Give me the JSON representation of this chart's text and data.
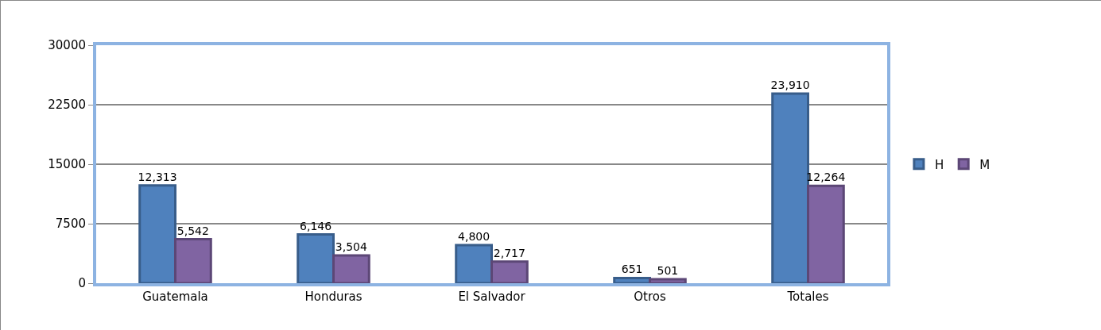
{
  "chart_data": {
    "type": "bar",
    "categories": [
      "Guatemala",
      "Honduras",
      "El Salvador",
      "Otros",
      "Totales"
    ],
    "series": [
      {
        "name": "H",
        "color": "#4f81bd",
        "values": [
          12313,
          6146,
          4800,
          651,
          23910
        ],
        "value_labels": [
          "12,313",
          "6,146",
          "4,800",
          "651",
          "23,910"
        ]
      },
      {
        "name": "M",
        "color": "#8064a2",
        "values": [
          5542,
          3504,
          2717,
          501,
          12264
        ],
        "value_labels": [
          "5,542",
          "3,504",
          "2,717",
          "501",
          "12,264"
        ]
      }
    ],
    "ylim": [
      0,
      30000
    ],
    "yticks": [
      0,
      7500,
      15000,
      22500,
      30000
    ],
    "grid": "y",
    "legend": "right"
  }
}
